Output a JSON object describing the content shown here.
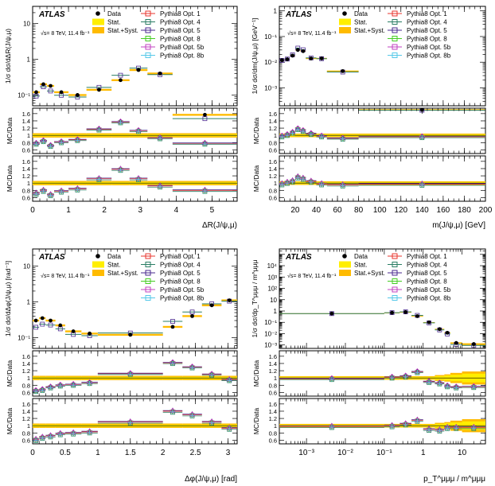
{
  "experiment_label": "ATLAS",
  "energy_label": "√s= 8 TeV, 11.4 fb⁻¹",
  "legend": {
    "data": "Data",
    "stat": "Stat.",
    "stat_syst": "Stat.+Syst.",
    "series": [
      "Pythia8 Opt. 1",
      "Pythia8 Opt. 4",
      "Pythia8 Opt. 5",
      "Pythia8 Opt. 8",
      "Pythia8 Opt. 5b",
      "Pythia8 Opt. 8b"
    ]
  },
  "colors": {
    "data": "#000000",
    "stat": "#ffee00",
    "stat_syst": "#ffbb00",
    "series": [
      "#e8352e",
      "#2a7d64",
      "#4a2a8f",
      "#44cc22",
      "#c040c0",
      "#55c8e8"
    ]
  },
  "ratio_label": "MC/Data",
  "chart_data": [
    {
      "id": "dR",
      "type": "scatter",
      "xlabel": "ΔR(J/ψ,μ)",
      "ylabel": "1/σ dσ/dΔR(J/ψ,μ)",
      "xlim": [
        0,
        5.7
      ],
      "ylim": [
        0.05,
        30
      ],
      "yscale": "log",
      "xticks": [
        0,
        1,
        2,
        3,
        4,
        5
      ],
      "yticks": [
        0.1,
        1,
        10
      ],
      "ytick_labels": [
        "10⁻¹",
        "1",
        "10"
      ],
      "bins": [
        [
          0,
          0.2
        ],
        [
          0.2,
          0.4
        ],
        [
          0.4,
          0.6
        ],
        [
          0.6,
          1.0
        ],
        [
          1.0,
          1.5
        ],
        [
          1.5,
          2.2
        ],
        [
          2.2,
          2.7
        ],
        [
          2.7,
          3.2
        ],
        [
          3.2,
          3.9
        ],
        [
          3.9,
          5.7
        ]
      ],
      "data_values": [
        0.12,
        0.2,
        0.18,
        0.12,
        0.1,
        0.14,
        0.26,
        0.5,
        0.4,
        0.028
      ],
      "stat_error": [
        0.03,
        0.03,
        0.03,
        0.03,
        0.03,
        0.03,
        0.03,
        0.03,
        0.03,
        0.03
      ],
      "syst_error": [
        0.06,
        0.06,
        0.06,
        0.06,
        0.06,
        0.06,
        0.06,
        0.06,
        0.06,
        0.06
      ],
      "ratio1": [
        0.78,
        0.85,
        0.72,
        0.82,
        0.88,
        1.17,
        1.37,
        1.13,
        0.93,
        0.78
      ],
      "ratio2": [
        0.72,
        0.8,
        0.68,
        0.78,
        0.84,
        1.12,
        1.38,
        1.12,
        0.92,
        0.8
      ],
      "ratio_ylim": [
        0.5,
        1.75
      ],
      "ratio_yticks": [
        0.6,
        0.8,
        1,
        1.2,
        1.4,
        1.6
      ]
    },
    {
      "id": "mass",
      "type": "scatter",
      "xlabel": "m(J/ψ,μ) [GeV]",
      "ylabel": "1/σ dσ/dm(J/ψ,μ) [GeV⁻¹]",
      "xlim": [
        5,
        200
      ],
      "ylim": [
        0.0002,
        1.5
      ],
      "yscale": "log",
      "xticks": [
        20,
        40,
        60,
        80,
        100,
        120,
        140,
        160,
        180,
        200
      ],
      "yticks": [
        0.001,
        0.01,
        0.1,
        1
      ],
      "ytick_labels": [
        "10⁻³",
        "10⁻²",
        "10⁻¹",
        "1"
      ],
      "bins": [
        [
          5,
          10
        ],
        [
          10,
          15
        ],
        [
          15,
          20
        ],
        [
          20,
          25
        ],
        [
          25,
          30
        ],
        [
          30,
          40
        ],
        [
          40,
          50
        ],
        [
          50,
          80
        ],
        [
          80,
          200
        ]
      ],
      "data_values": [
        0.012,
        0.013,
        0.018,
        0.03,
        0.027,
        0.014,
        0.014,
        0.0045,
        0.00014
      ],
      "stat_error": [
        0.03,
        0.03,
        0.03,
        0.03,
        0.03,
        0.03,
        0.03,
        0.03,
        0.03
      ],
      "syst_error": [
        0.05,
        0.05,
        0.05,
        0.05,
        0.05,
        0.05,
        0.05,
        0.05,
        0.05
      ],
      "ratio1": [
        0.98,
        1.02,
        1.08,
        1.18,
        1.13,
        1.05,
        0.98,
        0.92,
        0.96
      ],
      "ratio2": [
        0.98,
        1.02,
        1.06,
        1.17,
        1.13,
        1.05,
        0.98,
        0.95,
        0.97
      ],
      "ratio_ylim": [
        0.5,
        1.75
      ],
      "ratio_yticks": [
        0.6,
        0.8,
        1,
        1.2,
        1.4,
        1.6
      ]
    },
    {
      "id": "dphi",
      "type": "scatter",
      "xlabel": "Δφ(J/ψ,μ) [rad]",
      "ylabel": "1/σ dσ/dΔφ(J/ψ,μ) [rad⁻¹]",
      "xlim": [
        0,
        3.14
      ],
      "ylim": [
        0.05,
        30
      ],
      "yscale": "log",
      "xticks": [
        0,
        0.5,
        1,
        1.5,
        2,
        2.5,
        3
      ],
      "xtick_labels": [
        "0",
        "0.5",
        "1",
        "1.5",
        "2",
        "2.5",
        "3"
      ],
      "yticks": [
        0.1,
        1,
        10
      ],
      "ytick_labels": [
        "10⁻¹",
        "1",
        "10"
      ],
      "bins": [
        [
          0,
          0.1
        ],
        [
          0.1,
          0.2
        ],
        [
          0.2,
          0.35
        ],
        [
          0.35,
          0.5
        ],
        [
          0.5,
          0.75
        ],
        [
          0.75,
          1.0
        ],
        [
          1.0,
          2.0
        ],
        [
          2.0,
          2.3
        ],
        [
          2.3,
          2.6
        ],
        [
          2.6,
          2.9
        ],
        [
          2.9,
          3.14
        ]
      ],
      "data_values": [
        0.3,
        0.35,
        0.3,
        0.22,
        0.15,
        0.13,
        0.12,
        0.2,
        0.4,
        0.8,
        1.1
      ],
      "stat_error": [
        0.03,
        0.03,
        0.03,
        0.03,
        0.03,
        0.03,
        0.03,
        0.03,
        0.03,
        0.03,
        0.03
      ],
      "syst_error": [
        0.06,
        0.06,
        0.06,
        0.06,
        0.06,
        0.06,
        0.06,
        0.06,
        0.06,
        0.06,
        0.06
      ],
      "ratio1": [
        0.65,
        0.68,
        0.75,
        0.8,
        0.82,
        0.87,
        1.12,
        1.42,
        1.3,
        1.1,
        0.95
      ],
      "ratio2": [
        0.62,
        0.68,
        0.72,
        0.78,
        0.8,
        0.83,
        1.1,
        1.4,
        1.3,
        1.1,
        0.93
      ],
      "ratio_ylim": [
        0.5,
        1.75
      ],
      "ratio_yticks": [
        0.6,
        0.8,
        1,
        1.2,
        1.4,
        1.6
      ]
    },
    {
      "id": "pt",
      "type": "scatter",
      "xlabel": "p_T^μμμ / m^μμμ",
      "ylabel": "1/σ dσ/dp_T^μμμ / m^μμμ",
      "xlim": [
        0.0002,
        40
      ],
      "xscale": "log",
      "ylim": [
        0.0005,
        300000
      ],
      "yscale": "log",
      "xticks": [
        0.001,
        0.01,
        0.1,
        1,
        10
      ],
      "xtick_labels": [
        "10⁻³",
        "10⁻²",
        "10⁻¹",
        "1",
        "10"
      ],
      "yticks": [
        0.001,
        0.01,
        0.1,
        1,
        10,
        100,
        1000,
        10000
      ],
      "ytick_labels": [
        "10⁻³",
        "10⁻²",
        "10⁻¹",
        "1",
        "10",
        "10²",
        "10³",
        "10⁴"
      ],
      "bins": [
        [
          0.0002,
          0.1
        ],
        [
          0.1,
          0.25
        ],
        [
          0.25,
          0.5
        ],
        [
          0.5,
          1.0
        ],
        [
          1.0,
          2.0
        ],
        [
          2.0,
          3.5
        ],
        [
          3.5,
          5.0
        ],
        [
          5.0,
          10.0
        ],
        [
          10.0,
          40.0
        ]
      ],
      "data_values": [
        0.6,
        0.7,
        0.8,
        0.35,
        0.1,
        0.025,
        0.012,
        0.0015,
        0.0012
      ],
      "stat_error": [
        0.03,
        0.03,
        0.03,
        0.03,
        0.03,
        0.05,
        0.07,
        0.09,
        0.12
      ],
      "syst_error": [
        0.05,
        0.05,
        0.05,
        0.05,
        0.05,
        0.08,
        0.1,
        0.14,
        0.18
      ],
      "ratio1": [
        0.98,
        1.02,
        1.05,
        1.17,
        0.9,
        0.86,
        0.78,
        0.75,
        0.76
      ],
      "ratio2": [
        0.98,
        1.0,
        1.05,
        1.15,
        0.9,
        0.88,
        0.95,
        0.95,
        0.95
      ],
      "ratio_ylim": [
        0.5,
        1.75
      ],
      "ratio_yticks": [
        0.6,
        0.8,
        1,
        1.2,
        1.4,
        1.6
      ]
    }
  ]
}
